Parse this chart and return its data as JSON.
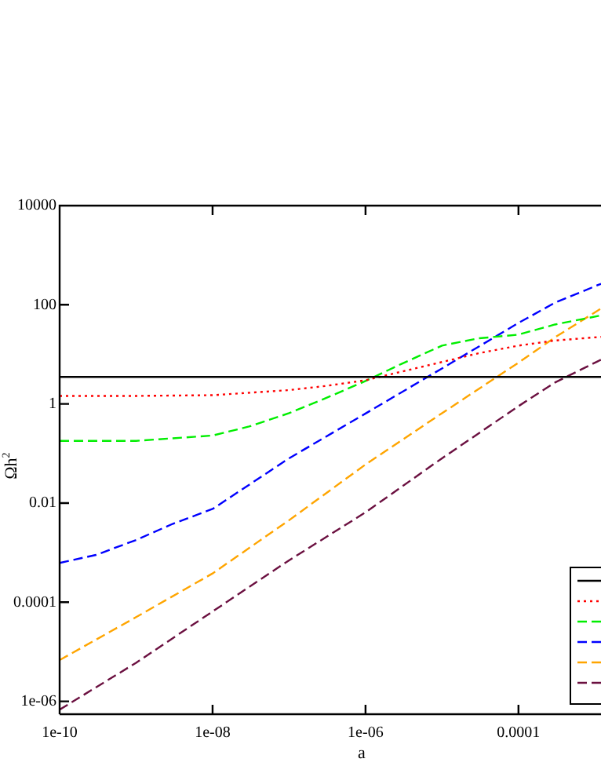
{
  "chart_data": {
    "type": "line",
    "xlabel": "a",
    "ylabel": "Ωh$^{2}$",
    "log": "xy",
    "grid": false,
    "marker": "none",
    "xlim": [
      1e-10,
      0.0012
    ],
    "ylim": [
      5.5e-07,
      10000
    ],
    "xticks": [
      {
        "value": 1e-10,
        "label": "1e-10"
      },
      {
        "value": 1e-08,
        "label": "1e-08"
      },
      {
        "value": 1e-06,
        "label": "1e-06"
      },
      0.0001
    ],
    "yticks": [
      {
        "value": 1e-06,
        "label": "1e-06"
      },
      0.0001,
      0.01,
      1,
      100,
      10000
    ],
    "series": [
      {
        "color": "#000000",
        "line_style": "solid",
        "x": [
          1e-10,
          0.0012
        ],
        "values": [
          3.5,
          3.5
        ]
      },
      {
        "color": "#ff0000",
        "line_style": "dotted",
        "x": [
          1e-10,
          1e-09,
          1e-08,
          1e-07,
          3e-07,
          1e-06,
          3e-06,
          1e-05,
          3e-05,
          0.0001,
          0.0003,
          0.0012
        ],
        "values": [
          1.45,
          1.45,
          1.5,
          1.9,
          2.3,
          3.0,
          4.5,
          7,
          10.5,
          15,
          19,
          22.5
        ]
      },
      {
        "color": "#00ee00",
        "line_style": "dashed",
        "x": [
          1e-10,
          1e-09,
          1e-08,
          3e-08,
          1e-07,
          3e-07,
          1e-06,
          3e-06,
          1e-05,
          3e-05,
          0.0001,
          0.0003,
          0.0012
        ],
        "values": [
          0.18,
          0.18,
          0.23,
          0.35,
          0.65,
          1.3,
          2.9,
          6.5,
          15,
          21,
          25,
          40,
          61
        ]
      },
      {
        "color": "#0000ff",
        "line_style": "dashed",
        "x": [
          1e-10,
          3e-10,
          1e-09,
          3e-09,
          1e-08,
          1e-07,
          1e-06,
          1e-05,
          0.0001,
          0.0003,
          0.0012
        ],
        "values": [
          0.00062,
          0.0009,
          0.0018,
          0.0038,
          0.0076,
          0.08,
          0.64,
          5.2,
          43,
          110,
          265
        ]
      },
      {
        "color": "#ffa500",
        "line_style": "dashed",
        "x": [
          1e-10,
          1e-09,
          1e-08,
          1e-07,
          1e-06,
          1e-05,
          0.0001,
          0.0003,
          0.0012
        ],
        "values": [
          6.8e-06,
          5e-05,
          0.00038,
          0.0045,
          0.06,
          0.65,
          6.8,
          22,
          84
        ]
      },
      {
        "color": "#6b1040",
        "line_style": "dashed",
        "x": [
          1e-10,
          1e-09,
          1e-08,
          1e-07,
          1e-06,
          1e-05,
          0.0001,
          0.0003,
          0.0012
        ],
        "values": [
          6.8e-07,
          6e-06,
          6.5e-05,
          0.0007,
          0.0065,
          0.08,
          0.9,
          2.7,
          7.8
        ]
      }
    ]
  }
}
